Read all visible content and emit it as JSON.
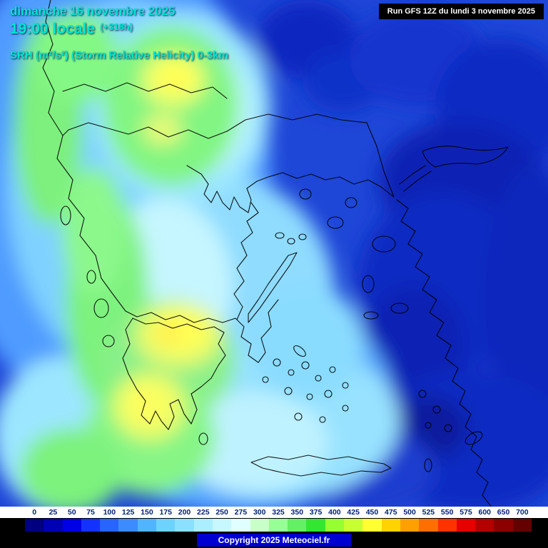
{
  "header": {
    "date_line": "dimanche 16 novembre 2025",
    "time_line": "19:00 locale",
    "time_offset": "(+318h)",
    "param_line": "SRH (m²/s²) (Storm Relative Helicity) 0-3km",
    "text_color": "#00e6d2"
  },
  "run_box": {
    "text": "Run GFS 12Z du lundi 3 novembre 2025"
  },
  "colorbar": {
    "labels": [
      "0",
      "25",
      "50",
      "75",
      "100",
      "125",
      "150",
      "175",
      "200",
      "225",
      "250",
      "275",
      "300",
      "325",
      "350",
      "375",
      "400",
      "425",
      "450",
      "475",
      "500",
      "525",
      "550",
      "575",
      "600",
      "650",
      "700"
    ],
    "colors": [
      "#000080",
      "#0000b4",
      "#0000e6",
      "#1432ff",
      "#2864ff",
      "#3c8cff",
      "#50b4ff",
      "#6ed2ff",
      "#8ce0ff",
      "#aaeeff",
      "#c8f8ff",
      "#e0ffff",
      "#c8ffc8",
      "#96ff96",
      "#64f064",
      "#32e632",
      "#96ff32",
      "#c8ff32",
      "#ffff32",
      "#ffd200",
      "#ffa000",
      "#ff6e00",
      "#ff3200",
      "#e60000",
      "#b40000",
      "#8c0000",
      "#640000"
    ]
  },
  "footer": {
    "copyright": "Copyright 2025 Meteociel.fr",
    "box_color": "#0000d2"
  }
}
